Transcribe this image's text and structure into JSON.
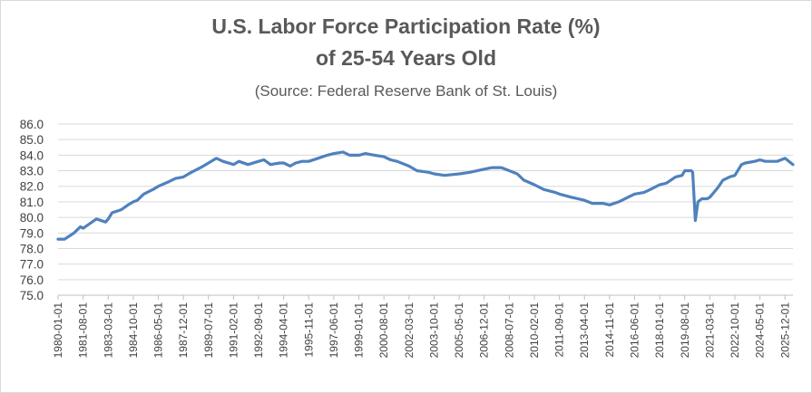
{
  "chart_data": {
    "type": "line",
    "title": "U.S. Labor Force Participation Rate (%)",
    "subtitle": "of 25-54 Years Old",
    "source": "(Source: Federal Reserve Bank of St. Louis)",
    "xlabel": "",
    "ylabel": "",
    "ylim": [
      75.0,
      86.0
    ],
    "y_ticks": [
      "75.0",
      "76.0",
      "77.0",
      "78.0",
      "79.0",
      "80.0",
      "81.0",
      "82.0",
      "83.0",
      "84.0",
      "85.0",
      "86.0"
    ],
    "x_ticks": [
      "1980-01-01",
      "1981-08-01",
      "1983-03-01",
      "1984-10-01",
      "1986-05-01",
      "1987-12-01",
      "1989-07-01",
      "1991-02-01",
      "1992-09-01",
      "1994-04-01",
      "1995-11-01",
      "1997-06-01",
      "1999-01-01",
      "2000-08-01",
      "2002-03-01",
      "2003-10-01",
      "2005-05-01",
      "2006-12-01",
      "2008-07-01",
      "2010-02-01",
      "2011-09-01",
      "2013-04-01",
      "2014-11-01",
      "2016-06-01",
      "2018-01-01",
      "2019-08-01",
      "2021-03-01",
      "2022-10-01",
      "2024-05-01",
      "2025-12-01"
    ],
    "grid": true,
    "legend": "none",
    "line_color": "#4f81bd",
    "series": [
      {
        "x": [
          "1980-01",
          "1980-06",
          "1981-01",
          "1981-06",
          "1981-08",
          "1982-01",
          "1982-06",
          "1983-01",
          "1983-03",
          "1983-06",
          "1984-01",
          "1984-06",
          "1984-10",
          "1985-01",
          "1985-06",
          "1986-01",
          "1986-05",
          "1987-01",
          "1987-06",
          "1987-12",
          "1988-06",
          "1989-01",
          "1989-07",
          "1990-01",
          "1990-06",
          "1991-02",
          "1991-06",
          "1992-01",
          "1992-09",
          "1993-01",
          "1993-06",
          "1994-01",
          "1994-04",
          "1994-09",
          "1995-01",
          "1995-06",
          "1995-11",
          "1996-06",
          "1997-01",
          "1997-06",
          "1998-01",
          "1998-06",
          "1999-01",
          "1999-06",
          "2000-01",
          "2000-08",
          "2001-01",
          "2001-06",
          "2002-03",
          "2002-09",
          "2003-06",
          "2003-10",
          "2004-06",
          "2005-05",
          "2006-01",
          "2006-12",
          "2007-06",
          "2008-01",
          "2008-07",
          "2009-01",
          "2009-06",
          "2010-02",
          "2010-09",
          "2011-06",
          "2011-09",
          "2012-06",
          "2013-04",
          "2013-10",
          "2014-06",
          "2014-11",
          "2015-06",
          "2016-01",
          "2016-06",
          "2017-01",
          "2017-06",
          "2018-01",
          "2018-06",
          "2019-01",
          "2019-06",
          "2019-08",
          "2020-01",
          "2020-02",
          "2020-04",
          "2020-06",
          "2020-09",
          "2021-01",
          "2021-03",
          "2021-09",
          "2022-01",
          "2022-06",
          "2022-10",
          "2023-03",
          "2023-06",
          "2024-01",
          "2024-05",
          "2024-09",
          "2025-01",
          "2025-06",
          "2025-12",
          "2026-03",
          "2026-06"
        ],
        "y": [
          78.6,
          78.6,
          79.0,
          79.4,
          79.3,
          79.6,
          79.9,
          79.7,
          79.9,
          80.3,
          80.5,
          80.8,
          81.0,
          81.1,
          81.5,
          81.8,
          82.0,
          82.3,
          82.5,
          82.6,
          82.9,
          83.2,
          83.5,
          83.8,
          83.6,
          83.4,
          83.6,
          83.4,
          83.6,
          83.7,
          83.4,
          83.5,
          83.5,
          83.3,
          83.5,
          83.6,
          83.6,
          83.8,
          84.0,
          84.1,
          84.2,
          84.0,
          84.0,
          84.1,
          84.0,
          83.9,
          83.7,
          83.6,
          83.3,
          83.0,
          82.9,
          82.8,
          82.7,
          82.8,
          82.9,
          83.1,
          83.2,
          83.2,
          83.0,
          82.8,
          82.4,
          82.1,
          81.8,
          81.6,
          81.5,
          81.3,
          81.1,
          80.9,
          80.9,
          80.8,
          81.0,
          81.3,
          81.5,
          81.6,
          81.8,
          82.1,
          82.2,
          82.6,
          82.7,
          83.0,
          83.0,
          82.9,
          79.8,
          81.0,
          81.2,
          81.2,
          81.3,
          81.9,
          82.4,
          82.6,
          82.7,
          83.4,
          83.5,
          83.6,
          83.7,
          83.6,
          83.6,
          83.6,
          83.8,
          83.6,
          83.4
        ]
      }
    ]
  }
}
